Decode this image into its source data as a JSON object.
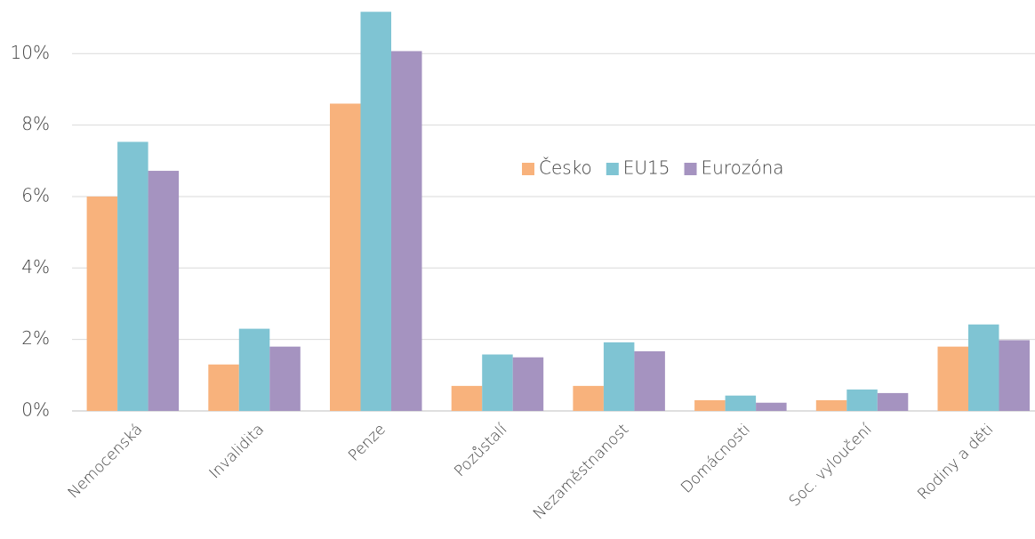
{
  "chart_data": {
    "type": "bar",
    "categories": [
      "Nemocenská",
      "Invalidita",
      "Penze",
      "Pozůstalí",
      "Nezaměstnanost",
      "Domácnosti",
      "Soc. vyloučení",
      "Rodiny a děti"
    ],
    "series": [
      {
        "name": "Česko",
        "color": "#f8b27c",
        "values": [
          6.0,
          1.3,
          8.6,
          0.7,
          0.7,
          0.3,
          0.3,
          1.8
        ]
      },
      {
        "name": "EU15",
        "color": "#7fc4d3",
        "values": [
          7.53,
          2.3,
          11.17,
          1.58,
          1.92,
          0.43,
          0.6,
          2.42
        ]
      },
      {
        "name": "Eurozóna",
        "color": "#a593c0",
        "values": [
          6.72,
          1.8,
          10.07,
          1.5,
          1.67,
          0.23,
          0.5,
          1.98
        ]
      }
    ],
    "ylim": [
      0,
      11.5
    ],
    "yticks": [
      {
        "value": 0,
        "label": "0%"
      },
      {
        "value": 2,
        "label": "2%"
      },
      {
        "value": 4,
        "label": "4%"
      },
      {
        "value": 6,
        "label": "6%"
      },
      {
        "value": 8,
        "label": "8%"
      },
      {
        "value": 10,
        "label": "10%"
      }
    ],
    "grid": true,
    "legend": "center"
  }
}
